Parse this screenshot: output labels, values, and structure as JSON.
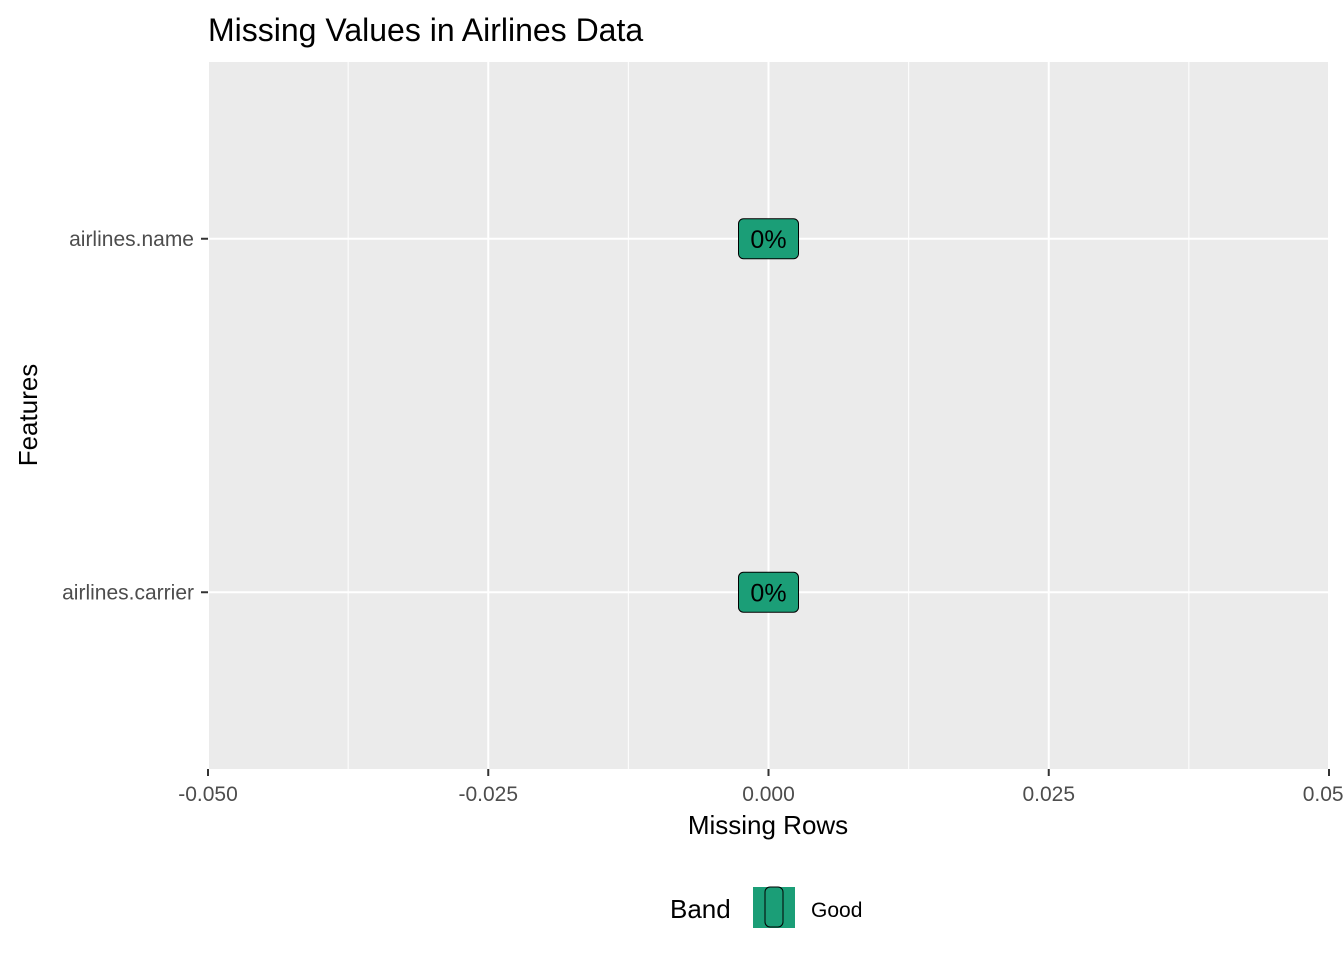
{
  "chart_data": {
    "type": "bar",
    "orientation": "horizontal",
    "title": "Missing Values in Airlines Data",
    "xlabel": "Missing Rows",
    "ylabel": "Features",
    "xlim": [
      -0.05,
      0.05
    ],
    "x_ticks": [
      -0.05,
      -0.025,
      0.0,
      0.025,
      0.05
    ],
    "x_tick_labels": [
      "-0.050",
      "-0.025",
      "0.000",
      "0.025",
      "0.050"
    ],
    "categories": [
      "airlines.name",
      "airlines.carrier"
    ],
    "values": [
      0,
      0
    ],
    "data_labels": [
      "0%",
      "0%"
    ],
    "band": [
      "Good",
      "Good"
    ],
    "grid": true,
    "legend": {
      "title": "Band",
      "position": "bottom",
      "entries": [
        {
          "label": "Good",
          "color": "#1b9e77"
        }
      ]
    },
    "colors": {
      "panel": "#ebebeb",
      "grid": "#ffffff",
      "good": "#1b9e77",
      "tick": "#333333"
    }
  }
}
